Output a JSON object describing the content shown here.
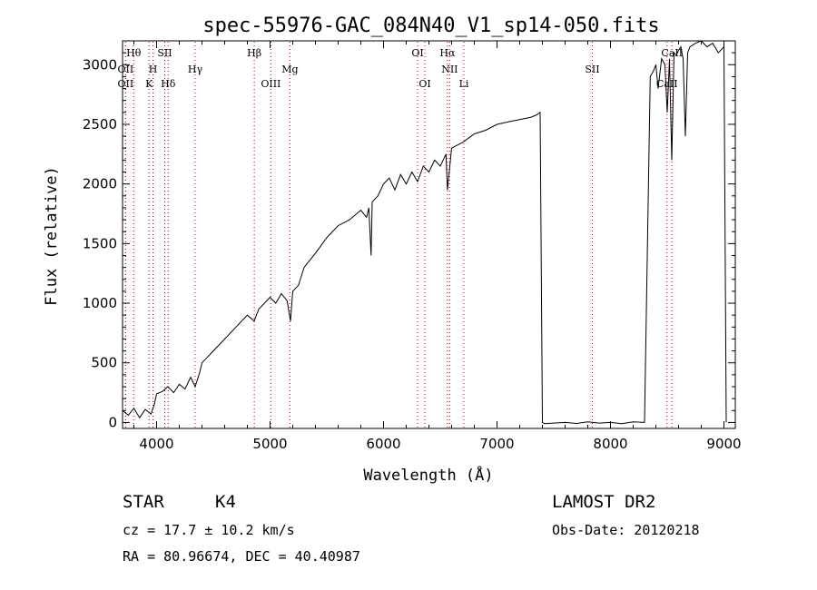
{
  "chart_data": {
    "type": "line",
    "title": "spec-55976-GAC_084N40_V1_sp14-050.fits",
    "xlabel": "Wavelength (Å)",
    "ylabel": "Flux (relative)",
    "xlim": [
      3700,
      9100
    ],
    "ylim": [
      -50,
      3200
    ],
    "xticks": [
      4000,
      5000,
      6000,
      7000,
      8000,
      9000
    ],
    "yticks": [
      0,
      500,
      1000,
      1500,
      2000,
      2500,
      3000
    ],
    "series": [
      {
        "name": "flux",
        "x": [
          3700,
          3750,
          3800,
          3850,
          3900,
          3950,
          3980,
          4000,
          4050,
          4100,
          4150,
          4200,
          4250,
          4300,
          4340,
          4380,
          4400,
          4500,
          4600,
          4700,
          4800,
          4860,
          4900,
          5000,
          5050,
          5100,
          5150,
          5180,
          5200,
          5250,
          5300,
          5400,
          5500,
          5600,
          5700,
          5800,
          5850,
          5870,
          5890,
          5900,
          5950,
          6000,
          6050,
          6100,
          6150,
          6200,
          6250,
          6300,
          6350,
          6400,
          6450,
          6500,
          6550,
          6563,
          6600,
          6700,
          6800,
          6900,
          7000,
          7100,
          7200,
          7300,
          7350,
          7380,
          7400,
          7420,
          7500,
          7600,
          7700,
          7800,
          7900,
          8000,
          8100,
          8200,
          8300,
          8350,
          8380,
          8400,
          8420,
          8450,
          8480,
          8500,
          8520,
          8540,
          8560,
          8580,
          8600,
          8620,
          8640,
          8660,
          8680,
          8700,
          8750,
          8800,
          8850,
          8900,
          8950,
          9000,
          9020
        ],
        "y": [
          100,
          60,
          120,
          40,
          110,
          70,
          150,
          240,
          260,
          300,
          250,
          320,
          280,
          380,
          300,
          420,
          500,
          600,
          700,
          800,
          900,
          850,
          950,
          1050,
          1000,
          1080,
          1020,
          850,
          1100,
          1150,
          1300,
          1420,
          1550,
          1650,
          1700,
          1780,
          1720,
          1800,
          1400,
          1850,
          1900,
          2000,
          2050,
          1950,
          2080,
          2000,
          2100,
          2020,
          2150,
          2100,
          2200,
          2150,
          2250,
          1950,
          2300,
          2350,
          2420,
          2450,
          2500,
          2520,
          2540,
          2560,
          2580,
          2600,
          0,
          -10,
          -5,
          0,
          -8,
          5,
          -5,
          0,
          -10,
          5,
          0,
          2900,
          2950,
          3000,
          2800,
          3050,
          3000,
          2600,
          3050,
          2200,
          3100,
          3080,
          3120,
          3150,
          3050,
          2400,
          3100,
          3150,
          3180,
          3200,
          3150,
          3180,
          3100,
          3150,
          0
        ]
      }
    ],
    "spectral_lines": [
      {
        "label": "Hθ",
        "wavelength": 3798,
        "row": 1
      },
      {
        "label": "OII",
        "wavelength": 3727,
        "row": 2
      },
      {
        "label": "OII",
        "wavelength": 3727,
        "row": 3
      },
      {
        "label": "H",
        "wavelength": 3968,
        "row": 2
      },
      {
        "label": "K",
        "wavelength": 3934,
        "row": 3
      },
      {
        "label": "SII",
        "wavelength": 4072,
        "row": 1
      },
      {
        "label": "Hδ",
        "wavelength": 4102,
        "row": 3
      },
      {
        "label": "Hγ",
        "wavelength": 4340,
        "row": 2
      },
      {
        "label": "Hβ",
        "wavelength": 4861,
        "row": 1
      },
      {
        "label": "OIII",
        "wavelength": 5007,
        "row": 3
      },
      {
        "label": "Mg",
        "wavelength": 5175,
        "row": 2
      },
      {
        "label": "OI",
        "wavelength": 6300,
        "row": 1
      },
      {
        "label": "OI",
        "wavelength": 6364,
        "row": 3
      },
      {
        "label": "Hα",
        "wavelength": 6563,
        "row": 1
      },
      {
        "label": "NII",
        "wavelength": 6583,
        "row": 2
      },
      {
        "label": "Li",
        "wavelength": 6708,
        "row": 3
      },
      {
        "label": "SII",
        "wavelength": 7840,
        "row": 2
      },
      {
        "label": "CaII",
        "wavelength": 8542,
        "row": 1
      },
      {
        "label": "CaII",
        "wavelength": 8498,
        "row": 3
      }
    ]
  },
  "info": {
    "classification": "STAR",
    "subclass": "K4",
    "survey": "LAMOST DR2",
    "redshift": "cz = 17.7 ± 10.2 km/s",
    "obs_date": "Obs-Date: 20120218",
    "coords": "RA =  80.96674, DEC =  40.40987"
  },
  "colors": {
    "line": "#000000",
    "marker_lines": "#cc0000",
    "background": "#ffffff"
  }
}
